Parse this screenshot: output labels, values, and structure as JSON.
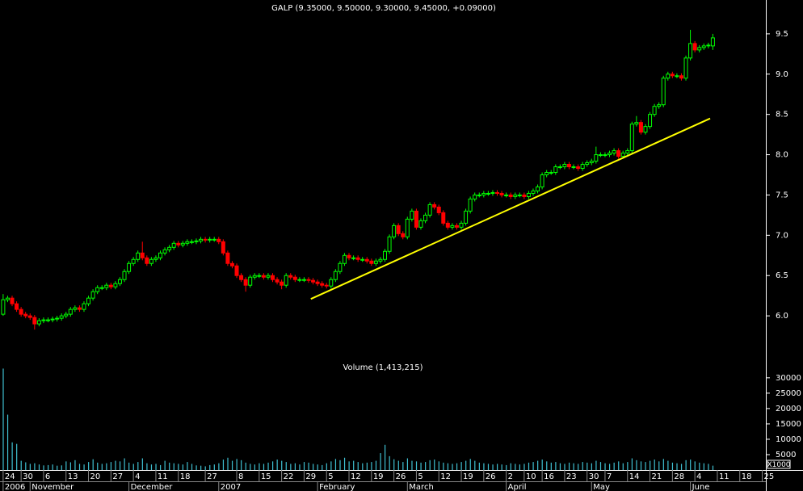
{
  "chart_data": [
    {
      "type": "candlestick",
      "title": "GALP (9.35000, 9.50000, 9.30000, 9.45000, +0.09000)",
      "up_color": "#00ff00",
      "down_color": "#ff0000",
      "xlim": [
        -0.7,
        169.8
      ],
      "ylim": [
        5.51,
        9.92
      ],
      "yticks": [
        {
          "value": 6.0,
          "label": "6.0"
        },
        6.5,
        {
          "value": 7.0,
          "label": "7.0"
        },
        7.5,
        {
          "value": 8.0,
          "label": "8.0"
        },
        8.5,
        {
          "value": 9.0,
          "label": "9.0"
        },
        9.5
      ],
      "xticks": [
        {
          "value": 0,
          "label": "24"
        },
        {
          "value": 4,
          "label": "30"
        },
        {
          "value": 9,
          "label": "6"
        },
        {
          "value": 14,
          "label": "13"
        },
        {
          "value": 19,
          "label": "20"
        },
        {
          "value": 24,
          "label": "27"
        },
        {
          "value": 29,
          "label": "4"
        },
        {
          "value": 34,
          "label": "11"
        },
        {
          "value": 39,
          "label": "18"
        },
        {
          "value": 45,
          "label": "27"
        },
        {
          "value": 52,
          "label": "8"
        },
        {
          "value": 57,
          "label": "15"
        },
        {
          "value": 62,
          "label": "22"
        },
        {
          "value": 67,
          "label": "29"
        },
        {
          "value": 72,
          "label": "5"
        },
        {
          "value": 77,
          "label": "12"
        },
        {
          "value": 82,
          "label": "19"
        },
        {
          "value": 87,
          "label": "26"
        },
        {
          "value": 92,
          "label": "5"
        },
        {
          "value": 97,
          "label": "12"
        },
        {
          "value": 102,
          "label": "19"
        },
        {
          "value": 107,
          "label": "26"
        },
        {
          "value": 112,
          "label": "2"
        },
        {
          "value": 116,
          "label": "10"
        },
        {
          "value": 120,
          "label": "16"
        },
        {
          "value": 125,
          "label": "23"
        },
        {
          "value": 130,
          "label": "30"
        },
        {
          "value": 134,
          "label": "7"
        },
        {
          "value": 139,
          "label": "14"
        },
        {
          "value": 144,
          "label": "21"
        },
        {
          "value": 149,
          "label": "28"
        },
        {
          "value": 154,
          "label": "4"
        },
        {
          "value": 159,
          "label": "11"
        },
        {
          "value": 164,
          "label": "18"
        },
        {
          "value": 169,
          "label": "25"
        }
      ],
      "month_labels": [
        {
          "value": 0,
          "label": "2006"
        },
        {
          "value": 6,
          "label": "November"
        },
        {
          "value": 28,
          "label": "December"
        },
        {
          "value": 48,
          "label": "2007"
        },
        {
          "value": 70,
          "label": "February"
        },
        {
          "value": 90,
          "label": "March"
        },
        {
          "value": 112,
          "label": "April"
        },
        {
          "value": 131,
          "label": "May"
        },
        {
          "value": 153,
          "label": "June"
        }
      ],
      "trendline": {
        "x": [
          68.5,
          157.4
        ],
        "y": [
          6.21,
          8.45
        ],
        "color": "#ffff00"
      },
      "candles": [
        [
          6.02,
          6.27,
          6.0,
          6.2
        ],
        [
          6.2,
          6.25,
          6.17,
          6.22
        ],
        [
          6.22,
          6.25,
          6.12,
          6.15
        ],
        [
          6.15,
          6.18,
          6.05,
          6.08
        ],
        [
          6.08,
          6.11,
          5.99,
          6.02
        ],
        [
          6.02,
          6.05,
          5.97,
          6.0
        ],
        [
          6.0,
          6.03,
          5.95,
          5.98
        ],
        [
          5.98,
          6.01,
          5.83,
          5.9
        ],
        [
          5.9,
          5.97,
          5.87,
          5.94
        ],
        [
          5.94,
          5.98,
          5.91,
          5.95
        ],
        [
          5.95,
          5.98,
          5.92,
          5.95
        ],
        [
          5.95,
          5.99,
          5.92,
          5.96
        ],
        [
          5.96,
          6.0,
          5.93,
          5.97
        ],
        [
          5.97,
          6.03,
          5.94,
          6.0
        ],
        [
          6.0,
          6.05,
          5.97,
          6.02
        ],
        [
          6.02,
          6.11,
          5.99,
          6.08
        ],
        [
          6.08,
          6.13,
          6.05,
          6.1
        ],
        [
          6.1,
          6.13,
          6.05,
          6.08
        ],
        [
          6.08,
          6.18,
          6.05,
          6.15
        ],
        [
          6.15,
          6.25,
          6.12,
          6.22
        ],
        [
          6.22,
          6.33,
          6.19,
          6.3
        ],
        [
          6.3,
          6.38,
          6.27,
          6.35
        ],
        [
          6.35,
          6.38,
          6.32,
          6.35
        ],
        [
          6.35,
          6.41,
          6.32,
          6.38
        ],
        [
          6.38,
          6.41,
          6.33,
          6.36
        ],
        [
          6.36,
          6.43,
          6.33,
          6.4
        ],
        [
          6.4,
          6.48,
          6.37,
          6.45
        ],
        [
          6.45,
          6.58,
          6.42,
          6.55
        ],
        [
          6.55,
          6.68,
          6.52,
          6.65
        ],
        [
          6.65,
          6.73,
          6.62,
          6.7
        ],
        [
          6.7,
          6.81,
          6.67,
          6.78
        ],
        [
          6.78,
          6.92,
          6.69,
          6.72
        ],
        [
          6.72,
          6.75,
          6.62,
          6.65
        ],
        [
          6.65,
          6.73,
          6.62,
          6.7
        ],
        [
          6.7,
          6.75,
          6.67,
          6.72
        ],
        [
          6.72,
          6.81,
          6.69,
          6.78
        ],
        [
          6.78,
          6.85,
          6.75,
          6.82
        ],
        [
          6.82,
          6.88,
          6.79,
          6.85
        ],
        [
          6.85,
          6.93,
          6.82,
          6.9
        ],
        [
          6.9,
          6.93,
          6.85,
          6.88
        ],
        [
          6.88,
          6.93,
          6.85,
          6.9
        ],
        [
          6.9,
          6.95,
          6.87,
          6.92
        ],
        [
          6.92,
          6.95,
          6.89,
          6.92
        ],
        [
          6.92,
          6.96,
          6.89,
          6.93
        ],
        [
          6.93,
          6.98,
          6.9,
          6.95
        ],
        [
          6.95,
          6.98,
          6.91,
          6.94
        ],
        [
          6.94,
          6.98,
          6.91,
          6.95
        ],
        [
          6.95,
          6.98,
          6.92,
          6.95
        ],
        [
          6.95,
          6.98,
          6.89,
          6.92
        ],
        [
          6.92,
          6.95,
          6.75,
          6.78
        ],
        [
          6.78,
          6.81,
          6.62,
          6.65
        ],
        [
          6.65,
          6.68,
          6.59,
          6.62
        ],
        [
          6.62,
          6.65,
          6.47,
          6.5
        ],
        [
          6.5,
          6.53,
          6.42,
          6.45
        ],
        [
          6.45,
          6.48,
          6.3,
          6.38
        ],
        [
          6.38,
          6.51,
          6.35,
          6.48
        ],
        [
          6.48,
          6.53,
          6.45,
          6.5
        ],
        [
          6.5,
          6.53,
          6.47,
          6.5
        ],
        [
          6.5,
          6.53,
          6.45,
          6.48
        ],
        [
          6.48,
          6.53,
          6.45,
          6.5
        ],
        [
          6.5,
          6.53,
          6.42,
          6.45
        ],
        [
          6.45,
          6.48,
          6.39,
          6.42
        ],
        [
          6.42,
          6.45,
          6.33,
          6.38
        ],
        [
          6.38,
          6.53,
          6.35,
          6.5
        ],
        [
          6.5,
          6.53,
          6.45,
          6.48
        ],
        [
          6.48,
          6.51,
          6.42,
          6.45
        ],
        [
          6.45,
          6.48,
          6.42,
          6.45
        ],
        [
          6.45,
          6.48,
          6.42,
          6.45
        ],
        [
          6.45,
          6.48,
          6.41,
          6.44
        ],
        [
          6.44,
          6.47,
          6.39,
          6.42
        ],
        [
          6.42,
          6.45,
          6.37,
          6.4
        ],
        [
          6.4,
          6.43,
          6.35,
          6.38
        ],
        [
          6.38,
          6.41,
          6.34,
          6.37
        ],
        [
          6.37,
          6.48,
          6.34,
          6.45
        ],
        [
          6.45,
          6.58,
          6.42,
          6.55
        ],
        [
          6.55,
          6.68,
          6.52,
          6.65
        ],
        [
          6.65,
          6.78,
          6.62,
          6.75
        ],
        [
          6.75,
          6.78,
          6.69,
          6.72
        ],
        [
          6.72,
          6.75,
          6.69,
          6.72
        ],
        [
          6.72,
          6.75,
          6.67,
          6.7
        ],
        [
          6.7,
          6.73,
          6.67,
          6.7
        ],
        [
          6.7,
          6.73,
          6.65,
          6.68
        ],
        [
          6.68,
          6.71,
          6.62,
          6.65
        ],
        [
          6.65,
          6.71,
          6.62,
          6.68
        ],
        [
          6.68,
          6.73,
          6.65,
          6.7
        ],
        [
          6.7,
          6.83,
          6.67,
          6.8
        ],
        [
          6.8,
          7.01,
          6.77,
          6.98
        ],
        [
          6.98,
          7.15,
          6.95,
          7.12
        ],
        [
          7.12,
          7.15,
          6.99,
          7.02
        ],
        [
          7.02,
          7.05,
          6.95,
          6.98
        ],
        [
          6.98,
          7.23,
          6.95,
          7.2
        ],
        [
          7.2,
          7.33,
          7.17,
          7.3
        ],
        [
          7.3,
          7.33,
          7.07,
          7.1
        ],
        [
          7.1,
          7.21,
          7.07,
          7.18
        ],
        [
          7.18,
          7.28,
          7.15,
          7.25
        ],
        [
          7.25,
          7.41,
          7.22,
          7.38
        ],
        [
          7.38,
          7.41,
          7.32,
          7.35
        ],
        [
          7.35,
          7.38,
          7.25,
          7.28
        ],
        [
          7.28,
          7.31,
          7.12,
          7.15
        ],
        [
          7.15,
          7.18,
          7.07,
          7.1
        ],
        [
          7.1,
          7.15,
          7.07,
          7.12
        ],
        [
          7.12,
          7.15,
          7.07,
          7.1
        ],
        [
          7.1,
          7.18,
          7.07,
          7.15
        ],
        [
          7.15,
          7.33,
          7.12,
          7.3
        ],
        [
          7.3,
          7.48,
          7.27,
          7.45
        ],
        [
          7.45,
          7.53,
          7.42,
          7.5
        ],
        [
          7.5,
          7.53,
          7.47,
          7.5
        ],
        [
          7.5,
          7.55,
          7.47,
          7.52
        ],
        [
          7.52,
          7.55,
          7.49,
          7.52
        ],
        [
          7.52,
          7.56,
          7.49,
          7.53
        ],
        [
          7.53,
          7.56,
          7.49,
          7.52
        ],
        [
          7.52,
          7.55,
          7.47,
          7.5
        ],
        [
          7.5,
          7.53,
          7.47,
          7.5
        ],
        [
          7.5,
          7.53,
          7.45,
          7.48
        ],
        [
          7.48,
          7.53,
          7.45,
          7.5
        ],
        [
          7.5,
          7.53,
          7.47,
          7.5
        ],
        [
          7.5,
          7.53,
          7.45,
          7.48
        ],
        [
          7.48,
          7.55,
          7.45,
          7.52
        ],
        [
          7.52,
          7.58,
          7.49,
          7.55
        ],
        [
          7.55,
          7.63,
          7.52,
          7.6
        ],
        [
          7.6,
          7.78,
          7.57,
          7.75
        ],
        [
          7.75,
          7.81,
          7.72,
          7.78
        ],
        [
          7.78,
          7.81,
          7.75,
          7.78
        ],
        [
          7.78,
          7.88,
          7.75,
          7.85
        ],
        [
          7.85,
          7.88,
          7.82,
          7.85
        ],
        [
          7.85,
          7.91,
          7.82,
          7.88
        ],
        [
          7.88,
          7.91,
          7.82,
          7.85
        ],
        [
          7.85,
          7.88,
          7.82,
          7.85
        ],
        [
          7.85,
          7.88,
          7.8,
          7.83
        ],
        [
          7.83,
          7.91,
          7.8,
          7.88
        ],
        [
          7.88,
          7.93,
          7.85,
          7.9
        ],
        [
          7.9,
          7.95,
          7.87,
          7.92
        ],
        [
          7.92,
          8.1,
          7.89,
          8.0
        ],
        [
          8.0,
          8.03,
          7.97,
          8.0
        ],
        [
          8.0,
          8.03,
          7.97,
          8.0
        ],
        [
          8.0,
          8.05,
          7.97,
          8.02
        ],
        [
          8.02,
          8.08,
          7.99,
          8.05
        ],
        [
          8.05,
          8.08,
          7.95,
          7.98
        ],
        [
          7.98,
          8.05,
          7.95,
          8.02
        ],
        [
          8.02,
          8.08,
          7.99,
          8.05
        ],
        [
          8.05,
          8.41,
          8.02,
          8.38
        ],
        [
          8.38,
          8.48,
          8.35,
          8.4
        ],
        [
          8.4,
          8.43,
          8.25,
          8.28
        ],
        [
          8.28,
          8.38,
          8.25,
          8.35
        ],
        [
          8.35,
          8.53,
          8.32,
          8.5
        ],
        [
          8.5,
          8.63,
          8.47,
          8.6
        ],
        [
          8.6,
          8.65,
          8.57,
          8.62
        ],
        [
          8.62,
          8.98,
          8.59,
          8.95
        ],
        [
          8.95,
          9.03,
          8.92,
          9.0
        ],
        [
          9.0,
          9.03,
          8.95,
          8.98
        ],
        [
          8.98,
          9.01,
          8.95,
          8.98
        ],
        [
          8.98,
          9.01,
          8.92,
          8.95
        ],
        [
          8.95,
          9.23,
          8.92,
          9.2
        ],
        [
          9.2,
          9.55,
          9.17,
          9.38
        ],
        [
          9.38,
          9.41,
          9.27,
          9.3
        ],
        [
          9.3,
          9.36,
          9.27,
          9.33
        ],
        [
          9.33,
          9.38,
          9.3,
          9.35
        ],
        [
          9.35,
          9.39,
          9.32,
          9.36
        ],
        [
          9.35,
          9.5,
          9.3,
          9.45
        ]
      ]
    },
    {
      "type": "bar",
      "title": "Volume (1,413,215)",
      "unit_label": "X1000",
      "color": "#3fbfd0",
      "ylim": [
        0,
        36000
      ],
      "yticks": [
        5000,
        10000,
        15000,
        20000,
        25000,
        30000
      ],
      "values": [
        33000,
        18000,
        9000,
        8500,
        3000,
        2500,
        2000,
        2200,
        1800,
        1500,
        1600,
        1800,
        1400,
        1500,
        2800,
        2500,
        3200,
        2000,
        1800,
        2600,
        3500,
        2400,
        2000,
        2200,
        2600,
        3000,
        2800,
        3800,
        2400,
        2000,
        2600,
        3800,
        2200,
        1800,
        2000,
        1600,
        3000,
        2400,
        2200,
        2000,
        1800,
        2600,
        2000,
        1500,
        1400,
        1200,
        1600,
        1800,
        2200,
        3400,
        4000,
        3000,
        3600,
        3200,
        2400,
        2000,
        1800,
        2200,
        2000,
        2400,
        2800,
        3400,
        3000,
        2600,
        2000,
        2200,
        1800,
        2600,
        2400,
        2000,
        1800,
        1600,
        2200,
        2800,
        3600,
        3200,
        4000,
        2800,
        3000,
        2600,
        2200,
        2400,
        2600,
        3000,
        5500,
        8200,
        4500,
        3500,
        3000,
        2600,
        3800,
        3000,
        2800,
        2400,
        2600,
        3200,
        3400,
        2800,
        2400,
        2200,
        2000,
        2200,
        2600,
        3000,
        3600,
        3000,
        2400,
        2200,
        2000,
        1800,
        2000,
        1800,
        1600,
        2200,
        2000,
        1800,
        2000,
        2400,
        2600,
        3000,
        3400,
        2800,
        2400,
        2600,
        2200,
        2000,
        2400,
        2200,
        2000,
        2600,
        2400,
        2200,
        3000,
        2600,
        2200,
        2000,
        2400,
        2800,
        2200,
        2600,
        3800,
        3200,
        2800,
        2600,
        3000,
        3400,
        2800,
        3600,
        3000,
        2400,
        2200,
        2000,
        3200,
        3400,
        2800,
        2400,
        2200,
        2000,
        1413
      ]
    }
  ]
}
